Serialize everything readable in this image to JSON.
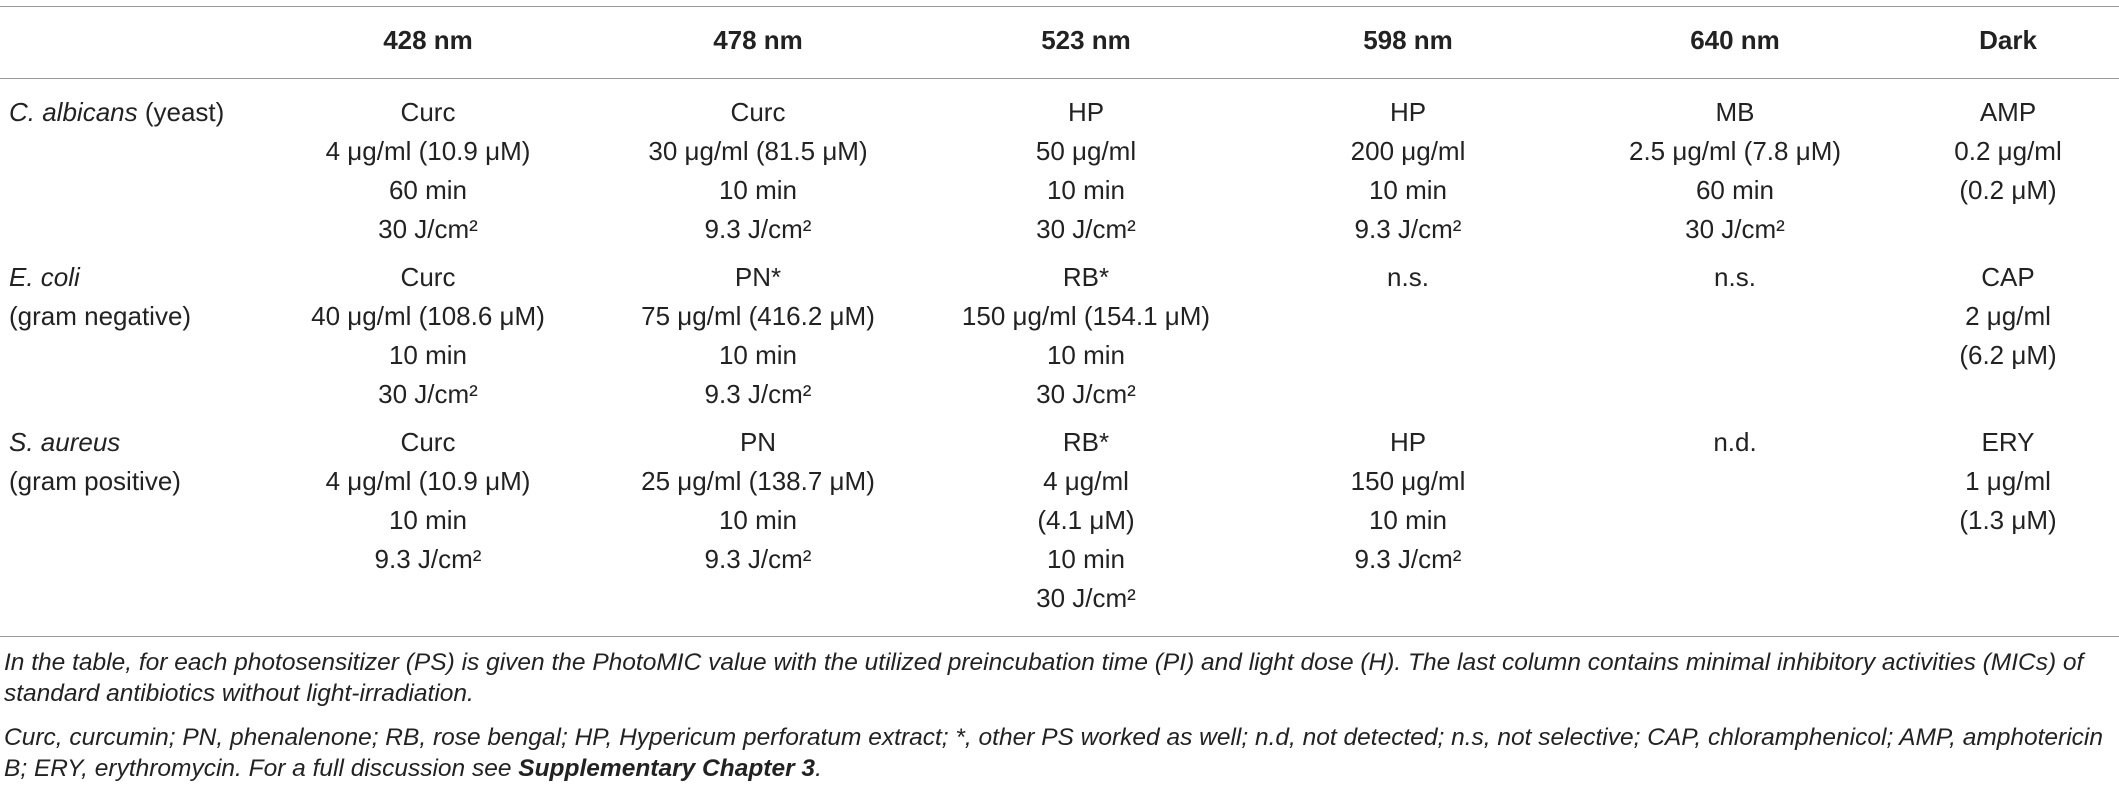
{
  "table": {
    "header": [
      "428 nm",
      "478 nm",
      "523 nm",
      "598 nm",
      "640 nm",
      "Dark"
    ],
    "rows": [
      {
        "label": [
          {
            "italic": "C. albicans",
            "plain": " (yeast)"
          }
        ],
        "cells": [
          [
            "Curc",
            "4 μg/ml (10.9 μM)",
            "60 min",
            "30 J/cm²"
          ],
          [
            "Curc",
            "30 μg/ml (81.5 μM)",
            "10 min",
            "9.3 J/cm²"
          ],
          [
            "HP",
            "50 μg/ml",
            "10 min",
            "30 J/cm²"
          ],
          [
            "HP",
            "200 μg/ml",
            "10 min",
            "9.3 J/cm²"
          ],
          [
            "MB",
            "2.5 μg/ml (7.8 μM)",
            "60 min",
            "30 J/cm²"
          ],
          [
            "AMP",
            "0.2 μg/ml",
            "(0.2 μM)"
          ]
        ]
      },
      {
        "label": [
          {
            "italic": "E. coli"
          },
          {
            "plain": "(gram negative)"
          }
        ],
        "cells": [
          [
            "Curc",
            "40 μg/ml (108.6 μM)",
            "10 min",
            "30 J/cm²"
          ],
          [
            "PN*",
            "75 μg/ml (416.2 μM)",
            "10 min",
            "9.3 J/cm²"
          ],
          [
            "RB*",
            "150 μg/ml (154.1 μM)",
            "10 min",
            "30 J/cm²"
          ],
          [
            "n.s."
          ],
          [
            "n.s."
          ],
          [
            "CAP",
            "2 μg/ml",
            "(6.2 μM)"
          ]
        ]
      },
      {
        "label": [
          {
            "italic": "S. aureus"
          },
          {
            "plain": "(gram positive)"
          }
        ],
        "cells": [
          [
            "Curc",
            "4 μg/ml (10.9 μM)",
            "10 min",
            "9.3 J/cm²"
          ],
          [
            "PN",
            "25 μg/ml (138.7 μM)",
            "10 min",
            "9.3 J/cm²"
          ],
          [
            "RB*",
            "4 μg/ml",
            "(4.1 μM)",
            "10 min",
            "30 J/cm²"
          ],
          [
            "HP",
            "150 μg/ml",
            "10 min",
            "9.3 J/cm²"
          ],
          [
            "n.d."
          ],
          [
            "ERY",
            "1 μg/ml",
            "(1.3 μM)"
          ]
        ]
      }
    ],
    "footnotes": {
      "note": "In the table, for each photosensitizer (PS) is given the PhotoMIC value with the utilized preincubation time (PI) and light dose (H). The last column contains minimal inhibitory activities (MICs) of standard antibiotics without light-irradiation.",
      "abbreviations": {
        "text": "Curc, curcumin; PN, phenalenone; RB, rose bengal; HP, Hypericum perforatum extract; *, other PS worked as well; n.d, not detected; n.s, not selective; CAP, chloramphenicol; AMP, amphotericin B; ERY, erythromycin. For a full discussion see ",
        "link": "Supplementary Chapter 3",
        "end": "."
      }
    }
  }
}
